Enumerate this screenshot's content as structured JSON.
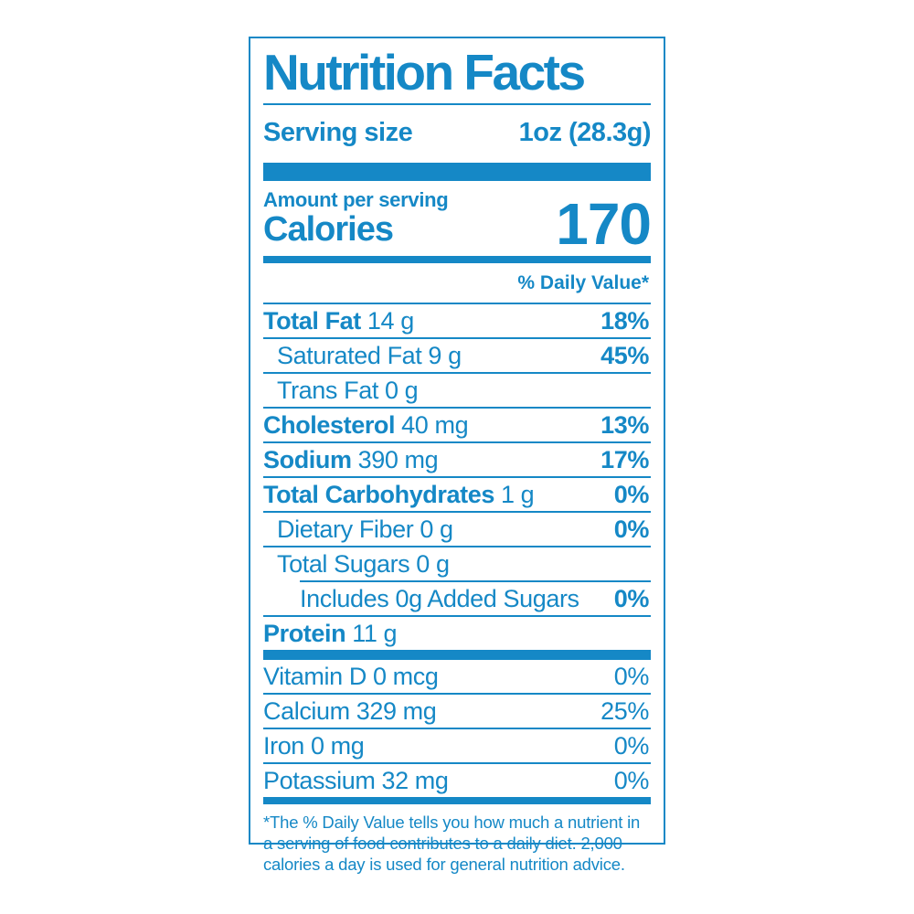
{
  "colors": {
    "accent": "#1588c6",
    "background": "#ffffff"
  },
  "header": {
    "title": "Nutrition Facts",
    "serving_size_label": "Serving size",
    "serving_size_value": "1oz (28.3g)"
  },
  "calories": {
    "amount_per_serving_label": "Amount per serving",
    "label": "Calories",
    "value": "170"
  },
  "daily_value_header": "% Daily Value*",
  "nutrients": [
    {
      "name": "Total Fat",
      "amount": "14 g",
      "dv": "18%"
    },
    {
      "name": "Saturated Fat",
      "amount": "9 g",
      "dv": "45%"
    },
    {
      "name": "Trans Fat",
      "amount": "0 g",
      "dv": ""
    },
    {
      "name": "Cholesterol",
      "amount": "40 mg",
      "dv": "13%"
    },
    {
      "name": "Sodium",
      "amount": "390 mg",
      "dv": "17%"
    },
    {
      "name": "Total Carbohydrates",
      "amount": "1 g",
      "dv": "0%"
    },
    {
      "name": "Dietary Fiber",
      "amount": "0 g",
      "dv": "0%"
    },
    {
      "name": "Total Sugars",
      "amount": "0 g",
      "dv": ""
    },
    {
      "name": "Includes 0g Added Sugars",
      "amount": "",
      "dv": "0%"
    },
    {
      "name": "Protein",
      "amount": "11 g",
      "dv": ""
    }
  ],
  "vitamins": [
    {
      "name": "Vitamin D",
      "amount": "0 mcg",
      "dv": "0%"
    },
    {
      "name": "Calcium",
      "amount": "329 mg",
      "dv": "25%"
    },
    {
      "name": "Iron",
      "amount": "0 mg",
      "dv": "0%"
    },
    {
      "name": "Potassium",
      "amount": "32 mg",
      "dv": "0%"
    }
  ],
  "footnote": "*The % Daily Value tells you how much a nutrient in a serving of food contributes to a daily diet. 2,000 calories a day is used for general nutrition advice."
}
